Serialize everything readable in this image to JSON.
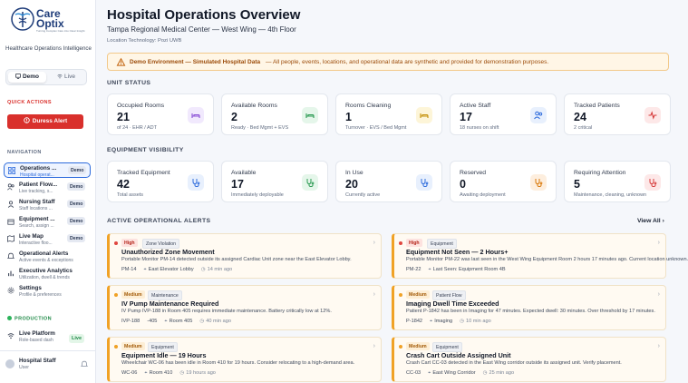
{
  "sidebar": {
    "brand_line1": "Care",
    "brand_line2": "Optix",
    "brand_tagline": "Turning Complex Care into Clear Insight",
    "subtitle": "Healthcare Operations Intelligence",
    "toggle": {
      "demo": "Demo",
      "live": "Live"
    },
    "quick_actions_label": "QUICK ACTIONS",
    "duress_label": "Duress Alert",
    "navigation_label": "NAVIGATION",
    "nav_items": [
      {
        "title": "Operations ...",
        "subtitle": "Hospital operat...",
        "badge": "Demo",
        "icon": "grid-icon"
      },
      {
        "title": "Patient Flow...",
        "subtitle": "Live tracking, s...",
        "badge": "Demo",
        "icon": "users-icon"
      },
      {
        "title": "Nursing Staff",
        "subtitle": "Staff locations ...",
        "badge": "Demo",
        "icon": "nurse-icon"
      },
      {
        "title": "Equipment ...",
        "subtitle": "Search, assign ...",
        "badge": "Demo",
        "icon": "box-icon"
      },
      {
        "title": "Live Map",
        "subtitle": "Interactive floo...",
        "badge": "Demo",
        "icon": "map-icon"
      },
      {
        "title": "Operational Alerts",
        "subtitle": "Active events & exceptions",
        "badge": "",
        "icon": "bell-icon"
      },
      {
        "title": "Executive Analytics",
        "subtitle": "Utilization, dwell & trends",
        "badge": "",
        "icon": "chart-icon"
      },
      {
        "title": "Settings",
        "subtitle": "Profile & preferences",
        "badge": "",
        "icon": "gear-icon"
      }
    ],
    "production_label": "PRODUCTION",
    "live_platform": {
      "title": "Live Platform",
      "subtitle": "Role-based dash",
      "badge": "Live"
    },
    "user": {
      "name": "Hospital Staff",
      "role": "User"
    }
  },
  "header": {
    "title": "Hospital Operations Overview",
    "facility": "Tampa Regional Medical Center — West Wing — 4th Floor",
    "location_tech": "Location Technology: Pozi UWB"
  },
  "banner": {
    "strong": "Demo Environment — Simulated Hospital Data",
    "text": "— All people, events, locations, and operational data are synthetic and provided for demonstration purposes."
  },
  "unit_status": {
    "label": "UNIT STATUS",
    "cards": [
      {
        "label": "Occupied Rooms",
        "value": "21",
        "sub": "of 24 · EHR / ADT",
        "icon": "bed-icon",
        "color": "#f1e9fd",
        "stroke": "#8a4fd6"
      },
      {
        "label": "Available Rooms",
        "value": "2",
        "sub": "Ready · Bed Mgmt + EVS",
        "icon": "bed-icon",
        "color": "#e5f6ea",
        "stroke": "#2b9a52"
      },
      {
        "label": "Rooms Cleaning",
        "value": "1",
        "sub": "Turnover · EVS / Bed Mgmt",
        "icon": "bed-icon",
        "color": "#fdf5d8",
        "stroke": "#c49008"
      },
      {
        "label": "Active Staff",
        "value": "17",
        "sub": "18 nurses on shift",
        "icon": "staff-icon",
        "color": "#e8f0fd",
        "stroke": "#2d6bdc"
      },
      {
        "label": "Tracked Patients",
        "value": "24",
        "sub": "2 critical",
        "icon": "pulse-icon",
        "color": "#fde8e8",
        "stroke": "#d63b3b"
      }
    ]
  },
  "equipment": {
    "label": "EQUIPMENT VISIBILITY",
    "cards": [
      {
        "label": "Tracked Equipment",
        "value": "42",
        "sub": "Total assets",
        "icon": "stethoscope-icon",
        "color": "#e8f0fd",
        "stroke": "#2d6bdc"
      },
      {
        "label": "Available",
        "value": "17",
        "sub": "Immediately deployable",
        "icon": "stethoscope-icon",
        "color": "#e5f6ea",
        "stroke": "#2b9a52"
      },
      {
        "label": "In Use",
        "value": "20",
        "sub": "Currently active",
        "icon": "stethoscope-icon",
        "color": "#e8f0fd",
        "stroke": "#2d6bdc"
      },
      {
        "label": "Reserved",
        "value": "0",
        "sub": "Awaiting deployment",
        "icon": "stethoscope-icon",
        "color": "#fdeede",
        "stroke": "#d97706"
      },
      {
        "label": "Requiring Attention",
        "value": "5",
        "sub": "Maintenance, cleaning, unknown",
        "icon": "stethoscope-icon",
        "color": "#fde8e8",
        "stroke": "#d63b3b"
      }
    ]
  },
  "alerts": {
    "label": "ACTIVE OPERATIONAL ALERTS",
    "view_all": "View All",
    "items": [
      {
        "severity": "High",
        "kind": "Zone Violation",
        "title": "Unauthorized Zone Movement",
        "desc": "Portable Monitor PM-14 detected outside its assigned Cardiac Unit zone near the East Elevator Lobby.",
        "id": "PM-14",
        "location": "East Elevator Lobby",
        "time": "14 min ago"
      },
      {
        "severity": "High",
        "kind": "Equipment",
        "title": "Equipment Not Seen — 2 Hours+",
        "desc": "Portable Monitor PM-22 was last seen in the West Wing Equipment Room 2 hours 17 minutes ago. Current location unknown.",
        "id": "PM-22",
        "location": "Last Seen: Equipment Room 4B",
        "time": ""
      },
      {
        "severity": "Medium",
        "kind": "Maintenance",
        "title": "IV Pump Maintenance Required",
        "desc": "IV Pump IVP-188 in Room 405 requires immediate maintenance. Battery critically low at 12%.",
        "id": "IVP-188",
        "extra": "-405",
        "location": "Room 405",
        "time": "40 min ago"
      },
      {
        "severity": "Medium",
        "kind": "Patient Flow",
        "title": "Imaging Dwell Time Exceeded",
        "desc": "Patient P-1842 has been in Imaging for 47 minutes. Expected dwell: 30 minutes. Over threshold by 17 minutes.",
        "id": "P-1842",
        "location": "Imaging",
        "time": "10 min ago"
      },
      {
        "severity": "Medium",
        "kind": "Equipment",
        "title": "Equipment Idle — 19 Hours",
        "desc": "Wheelchair WC-06 has been idle in Room 410 for 19 hours. Consider relocating to a high-demand area.",
        "id": "WC-06",
        "location": "Room 410",
        "time": "19 hours ago"
      },
      {
        "severity": "Medium",
        "kind": "Equipment",
        "title": "Crash Cart Outside Assigned Unit",
        "desc": "Crash Cart CC-03 detected in the East Wing corridor outside its assigned unit. Verify placement.",
        "id": "CC-03",
        "location": "East Wing Corridor",
        "time": "25 min ago"
      }
    ]
  }
}
